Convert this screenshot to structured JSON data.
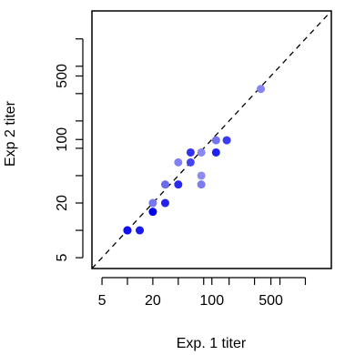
{
  "chart_data": {
    "type": "scatter",
    "xlabel": "Exp. 1 titer",
    "ylabel": "Exp 2 titer",
    "scale": "log",
    "xlim": [
      3.8,
      2600
    ],
    "ylim": [
      3.8,
      2600
    ],
    "x_ticks": [
      5,
      10,
      20,
      40,
      80,
      100,
      160,
      320,
      500,
      640,
      1280
    ],
    "x_tick_labels": [
      "5",
      "",
      "20",
      "",
      "",
      "100",
      "",
      "",
      "500",
      "",
      ""
    ],
    "y_ticks": [
      5,
      10,
      20,
      40,
      80,
      100,
      160,
      320,
      500,
      640,
      1280
    ],
    "y_tick_labels": [
      "5",
      "",
      "20",
      "",
      "",
      "100",
      "",
      "",
      "500",
      "",
      ""
    ],
    "reference_line": "y = x (dashed)",
    "grid": false,
    "points": [
      {
        "x": 10,
        "y": 10,
        "color": "#0000ee"
      },
      {
        "x": 10,
        "y": 10,
        "color": "#1010ee"
      },
      {
        "x": 14,
        "y": 10,
        "color": "#1a1aee"
      },
      {
        "x": 20,
        "y": 20,
        "color": "#7777ee"
      },
      {
        "x": 20,
        "y": 16,
        "color": "#0000ee"
      },
      {
        "x": 28,
        "y": 20,
        "color": "#2222ee"
      },
      {
        "x": 28,
        "y": 32,
        "color": "#6b6bee"
      },
      {
        "x": 40,
        "y": 32,
        "color": "#2a2aee"
      },
      {
        "x": 40,
        "y": 56,
        "color": "#8080ee"
      },
      {
        "x": 56,
        "y": 56,
        "color": "#4545ee"
      },
      {
        "x": 56,
        "y": 72,
        "color": "#3333ee"
      },
      {
        "x": 75,
        "y": 72,
        "color": "#8888ee"
      },
      {
        "x": 75,
        "y": 40,
        "color": "#8c8cee"
      },
      {
        "x": 75,
        "y": 32,
        "color": "#7c7cee"
      },
      {
        "x": 112,
        "y": 72,
        "color": "#2020ee"
      },
      {
        "x": 112,
        "y": 98,
        "color": "#7474ee"
      },
      {
        "x": 150,
        "y": 98,
        "color": "#3a3aee"
      },
      {
        "x": 380,
        "y": 360,
        "color": "#8585ee"
      }
    ]
  }
}
